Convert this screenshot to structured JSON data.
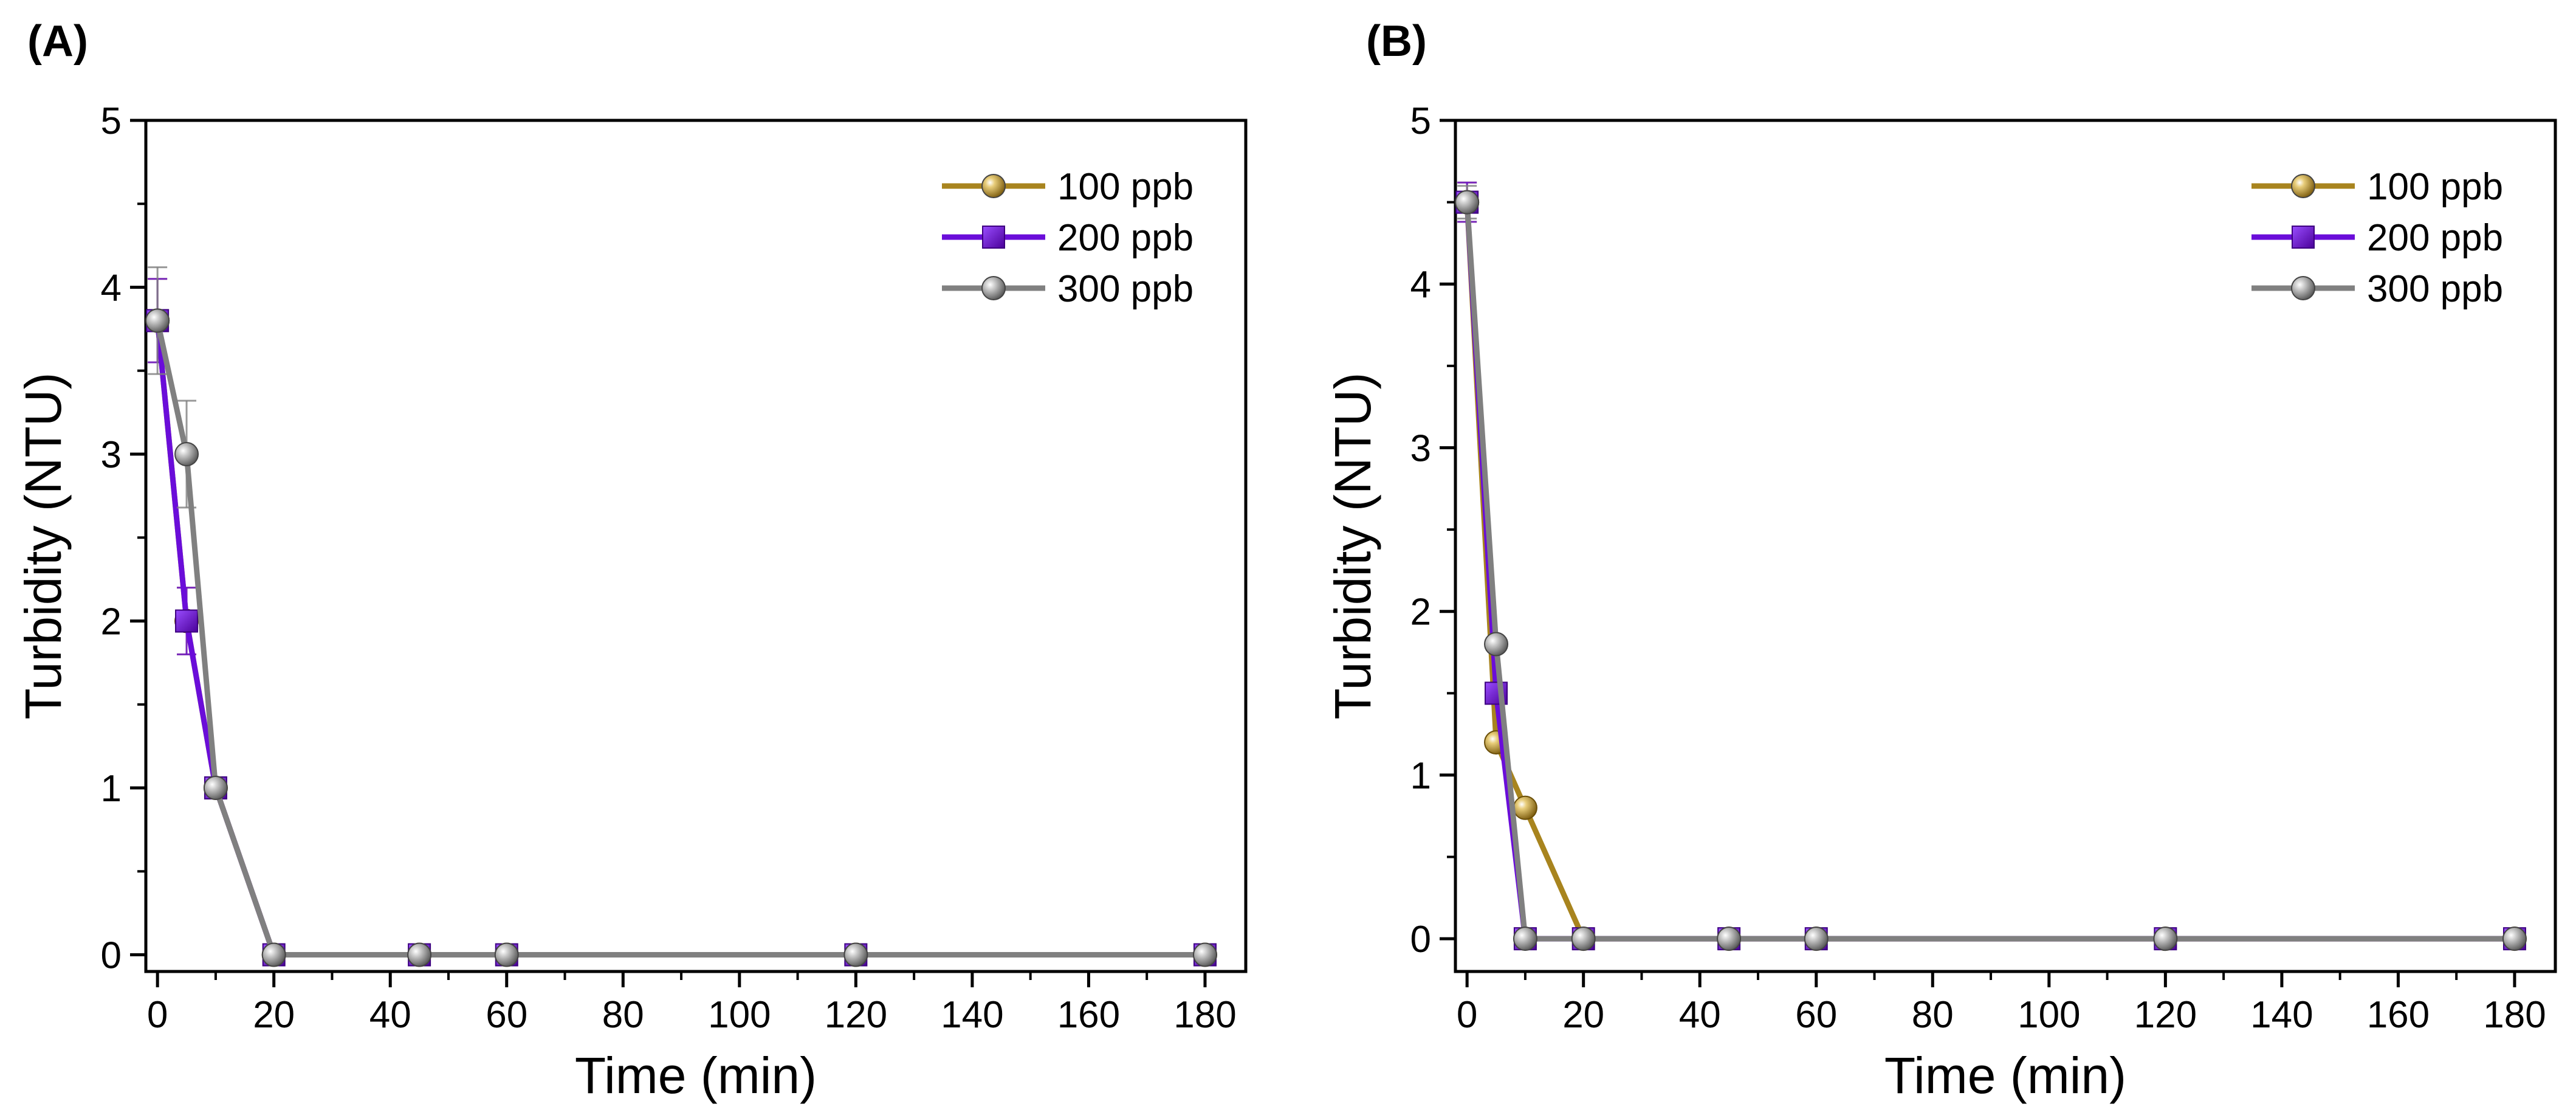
{
  "chart_data": [
    {
      "panel_label": "(A)",
      "type": "line",
      "xlabel": "Time (min)",
      "ylabel": "Turbidity (NTU)",
      "xlim": [
        -2,
        187
      ],
      "ylim": [
        -0.1,
        5
      ],
      "xticks": [
        0,
        20,
        40,
        60,
        80,
        100,
        120,
        140,
        160,
        180
      ],
      "yticks": [
        0,
        1,
        2,
        3,
        4,
        5
      ],
      "x": [
        0,
        5,
        10,
        20,
        45,
        60,
        120,
        180
      ],
      "legend_position": "top-right",
      "series": [
        {
          "name": "100 ppb",
          "marker": "circle",
          "color": "#A8841E",
          "values": [
            3.8,
            2.0,
            1.0,
            0,
            0,
            0,
            0,
            0
          ],
          "errors": [
            0.25,
            0.2,
            0.03,
            0,
            0,
            0,
            0,
            0
          ]
        },
        {
          "name": "200 ppb",
          "marker": "square",
          "color": "#6A0DD9",
          "values": [
            3.8,
            2.0,
            1.0,
            0,
            0,
            0,
            0,
            0
          ],
          "errors": [
            0.25,
            0.2,
            0.03,
            0,
            0,
            0,
            0,
            0
          ]
        },
        {
          "name": "300 ppb",
          "marker": "circle",
          "color": "#808080",
          "values": [
            3.8,
            3.0,
            1.0,
            0,
            0,
            0,
            0,
            0
          ],
          "errors": [
            0.32,
            0.32,
            0.03,
            0,
            0,
            0,
            0,
            0
          ]
        }
      ]
    },
    {
      "panel_label": "(B)",
      "type": "line",
      "xlabel": "Time (min)",
      "ylabel": "Turbidity (NTU)",
      "xlim": [
        -2,
        187
      ],
      "ylim": [
        -0.2,
        5
      ],
      "xticks": [
        0,
        20,
        40,
        60,
        80,
        100,
        120,
        140,
        160,
        180
      ],
      "yticks": [
        0,
        1,
        2,
        3,
        4,
        5
      ],
      "x": [
        0,
        5,
        10,
        20,
        45,
        60,
        120,
        180
      ],
      "legend_position": "top-right",
      "series": [
        {
          "name": "100 ppb",
          "marker": "circle",
          "color": "#A8841E",
          "values": [
            4.5,
            1.2,
            0.8,
            0,
            0,
            0,
            0,
            0
          ],
          "errors": [
            0.12,
            0.03,
            0.03,
            0,
            0,
            0,
            0,
            0
          ]
        },
        {
          "name": "200 ppb",
          "marker": "square",
          "color": "#6A0DD9",
          "values": [
            4.5,
            1.5,
            0,
            0,
            0,
            0,
            0,
            0
          ],
          "errors": [
            0.12,
            0.03,
            0,
            0,
            0,
            0,
            0,
            0
          ]
        },
        {
          "name": "300 ppb",
          "marker": "circle",
          "color": "#808080",
          "values": [
            4.5,
            1.8,
            0,
            0,
            0,
            0,
            0,
            0
          ],
          "errors": [
            0.1,
            0.03,
            0,
            0,
            0,
            0,
            0,
            0
          ]
        }
      ]
    }
  ]
}
